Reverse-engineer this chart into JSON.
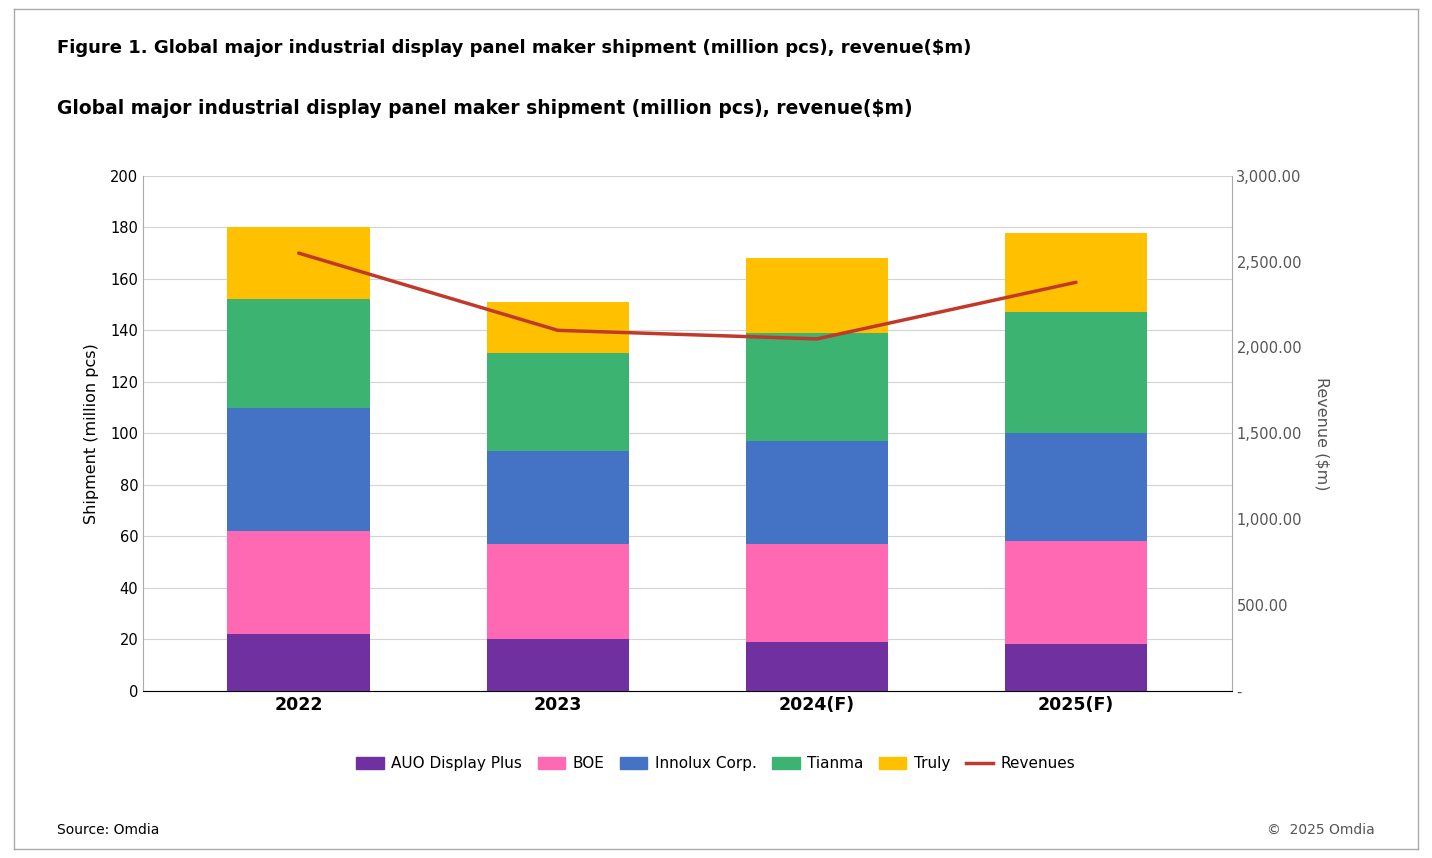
{
  "figure_title": "Figure 1. Global major industrial display panel maker shipment (million pcs), revenue($m)",
  "chart_title": "Global major industrial display panel maker shipment (million pcs), revenue($m)",
  "categories": [
    "2022",
    "2023",
    "2024(F)",
    "2025(F)"
  ],
  "bar_data": {
    "AUO Display Plus": [
      22,
      20,
      19,
      18
    ],
    "BOE": [
      40,
      37,
      38,
      40
    ],
    "Innolux Corp.": [
      48,
      36,
      40,
      42
    ],
    "Tianma": [
      42,
      38,
      42,
      47
    ],
    "Truly": [
      28,
      20,
      29,
      31
    ]
  },
  "revenues": [
    2550,
    2100,
    2050,
    2380
  ],
  "bar_colors": {
    "AUO Display Plus": "#7030a0",
    "BOE": "#ff69b4",
    "Innolux Corp.": "#4472c4",
    "Tianma": "#3cb371",
    "Truly": "#ffc000"
  },
  "revenue_line_color": "#c0392b",
  "left_ylabel": "Shipment (million pcs)",
  "right_ylabel": "Revenue ($m)",
  "left_ylim": [
    0,
    200
  ],
  "left_yticks": [
    0,
    20,
    40,
    60,
    80,
    100,
    120,
    140,
    160,
    180,
    200
  ],
  "right_ylim": [
    0,
    3000
  ],
  "right_yticks": [
    0,
    500,
    1000,
    1500,
    2000,
    2500,
    3000
  ],
  "right_yticklabels": [
    "-",
    "500.00",
    "1,000.00",
    "1,500.00",
    "2,000.00",
    "2,500.00",
    "3,000.00"
  ],
  "source_text": "Source: Omdia",
  "copyright_text": "©  2025 Omdia",
  "background_color": "#ffffff",
  "grid_color": "#d3d3d3",
  "outer_bg": "#f0f0f0"
}
